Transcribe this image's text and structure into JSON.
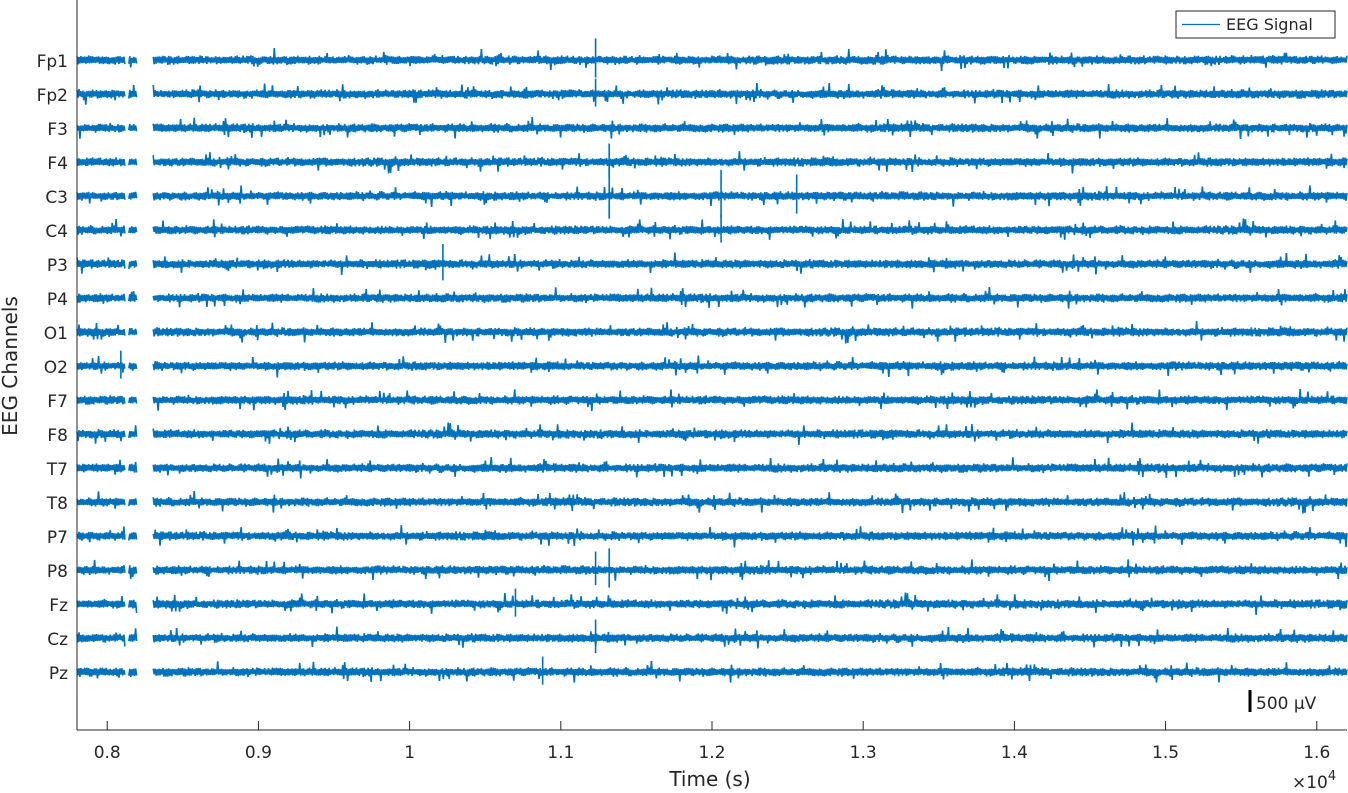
{
  "chart_data": {
    "type": "line",
    "xlabel": "Time (s)",
    "ylabel": "EEG Channels",
    "xlim": [
      7800,
      16200
    ],
    "x_ticks": [
      8000,
      9000,
      10000,
      11000,
      12000,
      13000,
      14000,
      15000,
      16000
    ],
    "x_tick_labels": [
      "0.8",
      "0.9",
      "1",
      "1.1",
      "1.2",
      "1.3",
      "1.4",
      "1.5",
      "1.6"
    ],
    "x_exponent_label": "×10",
    "x_exponent_power": "4",
    "channels": [
      "Fp1",
      "Fp2",
      "F3",
      "F4",
      "C3",
      "C4",
      "P3",
      "P4",
      "O1",
      "O2",
      "F7",
      "F8",
      "T7",
      "T8",
      "P7",
      "P8",
      "Fz",
      "Cz",
      "Pz"
    ],
    "series": [
      {
        "name": "EEG Signal",
        "color": "#0072bd"
      }
    ],
    "scale_bar": {
      "value": 500,
      "label": "500 μV"
    },
    "gaps": [
      [
        8120,
        8140
      ],
      [
        8200,
        8300
      ]
    ],
    "data_start": 7800,
    "data_end": 16200,
    "artifacts": [
      {
        "channel": "Fp1",
        "time": 11230,
        "amplitude": 700
      },
      {
        "channel": "Fp2",
        "time": 11230,
        "amplitude": 500
      },
      {
        "channel": "F4",
        "time": 11320,
        "amplitude": 600
      },
      {
        "channel": "C3",
        "time": 11320,
        "amplitude": 900
      },
      {
        "channel": "C3",
        "time": 12060,
        "amplitude": 850
      },
      {
        "channel": "C3",
        "time": 12560,
        "amplitude": 700
      },
      {
        "channel": "C4",
        "time": 12060,
        "amplitude": 500
      },
      {
        "channel": "P3",
        "time": 10220,
        "amplitude": 650
      },
      {
        "channel": "O2",
        "time": 8090,
        "amplitude": 500
      },
      {
        "channel": "P8",
        "time": 11320,
        "amplitude": 700
      },
      {
        "channel": "P8",
        "time": 11230,
        "amplitude": 600
      },
      {
        "channel": "Fz",
        "time": 10700,
        "amplitude": 500
      },
      {
        "channel": "Cz",
        "time": 11230,
        "amplitude": 600
      },
      {
        "channel": "Pz",
        "time": 10880,
        "amplitude": 500
      }
    ],
    "grid": false,
    "legend_location": "top-right"
  }
}
